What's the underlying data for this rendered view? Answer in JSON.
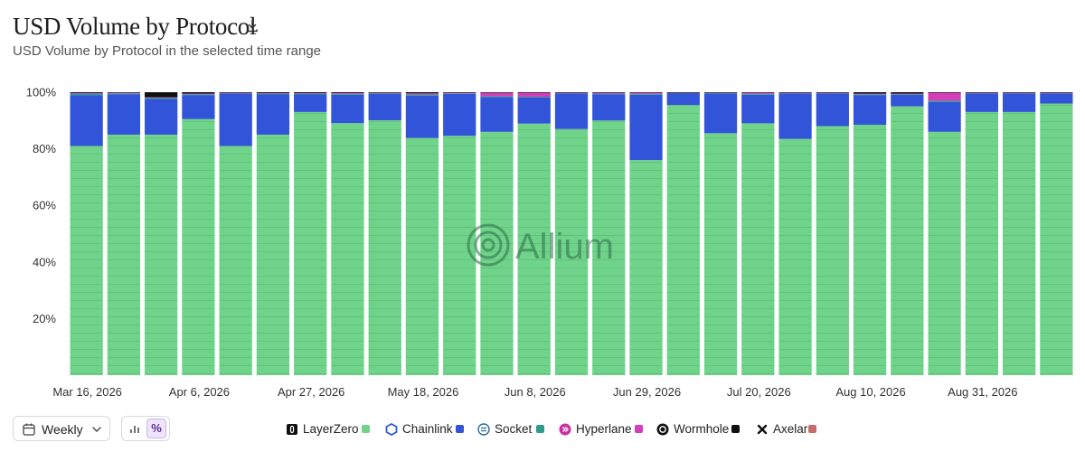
{
  "header": {
    "title": "USD Volume by Protocol",
    "subtitle": "USD Volume by Protocol in the selected time range"
  },
  "controls": {
    "interval": "Weekly",
    "percent_label": "%"
  },
  "watermark": "Allium",
  "chart_data": {
    "type": "bar",
    "stacked": true,
    "normalized": true,
    "ylim": [
      0,
      100
    ],
    "yticks": [
      "20%",
      "40%",
      "60%",
      "80%",
      "100%"
    ],
    "xtick_labels": [
      "Mar 16, 2026",
      "Apr 6, 2026",
      "Apr 27, 2026",
      "May 18, 2026",
      "Jun 8, 2026",
      "Jun 29, 2026",
      "Jul 20, 2026",
      "Aug 10, 2026",
      "Aug 31, 2026"
    ],
    "grid": false,
    "legend_position": "bottom",
    "categories": [
      "Mar 16, 2026",
      "Mar 23, 2026",
      "Mar 30, 2026",
      "Apr 6, 2026",
      "Apr 13, 2026",
      "Apr 20, 2026",
      "Apr 27, 2026",
      "May 4, 2026",
      "May 11, 2026",
      "May 18, 2026",
      "May 25, 2026",
      "Jun 1, 2026",
      "Jun 8, 2026",
      "Jun 15, 2026",
      "Jun 22, 2026",
      "Jun 29, 2026",
      "Jul 6, 2026",
      "Jul 13, 2026",
      "Jul 20, 2026",
      "Jul 27, 2026",
      "Aug 3, 2026",
      "Aug 10, 2026",
      "Aug 17, 2026",
      "Aug 24, 2026",
      "Aug 31, 2026",
      "Sep 7, 2026",
      "Sep 14, 2026"
    ],
    "series": [
      {
        "name": "LayerZero",
        "color": "#6fd48a",
        "values": [
          81,
          85,
          85,
          90.5,
          81,
          85,
          93,
          89,
          90,
          83,
          84.5,
          86,
          89,
          87,
          90,
          76,
          95.5,
          85.5,
          89,
          83.5,
          88,
          88.5,
          95,
          86,
          93,
          93,
          96
        ]
      },
      {
        "name": "Chainlink",
        "color": "#3254d8",
        "values": [
          18,
          14.3,
          12.6,
          8.5,
          18.5,
          14.2,
          6.2,
          10,
          9.3,
          14.8,
          14.8,
          12.3,
          9.3,
          12.5,
          9.3,
          23.1,
          4.2,
          14,
          10.1,
          16,
          11.5,
          10.5,
          4.1,
          10.5,
          6.5,
          6.5,
          3.5
        ]
      },
      {
        "name": "Socket",
        "color": "#2f9a8e",
        "values": [
          0.5,
          0.3,
          0.4,
          0.3,
          0.2,
          0.3,
          0.3,
          0.3,
          0.3,
          0.4,
          0.2,
          0.3,
          0.2,
          0.2,
          0.2,
          0.3,
          0.1,
          0.2,
          0.3,
          0.2,
          0.2,
          0.3,
          0.3,
          0.5,
          0.2,
          0.2,
          0.2
        ]
      },
      {
        "name": "Hyperlane",
        "color": "#d33fb8",
        "values": [
          0.2,
          0.2,
          0.2,
          0.2,
          0.1,
          0.2,
          0.2,
          0.3,
          0.1,
          0.4,
          0.3,
          1.2,
          1.5,
          0.1,
          0.3,
          0.4,
          0.1,
          0.2,
          0.4,
          0.1,
          0.1,
          0.2,
          0.1,
          2.9,
          0.1,
          0.1,
          0.1
        ]
      },
      {
        "name": "Wormhole",
        "color": "#111111",
        "values": [
          0.3,
          0.2,
          1.8,
          0.5,
          0.2,
          0.3,
          0.3,
          0.3,
          0.2,
          0.4,
          0.1,
          0.2,
          0.1,
          0.2,
          0.2,
          0.2,
          0.1,
          0.1,
          0.2,
          0.2,
          0.2,
          0.5,
          0.5,
          0.1,
          0.2,
          0.2,
          0.2
        ]
      },
      {
        "name": "Axelar",
        "color": "#c96a6a",
        "values": [
          0,
          0,
          0,
          0,
          0,
          0,
          0,
          0,
          0,
          0,
          0,
          0,
          0,
          0,
          0,
          0,
          0,
          0,
          0,
          0,
          0,
          0,
          0,
          0,
          0,
          0,
          0
        ]
      }
    ]
  }
}
